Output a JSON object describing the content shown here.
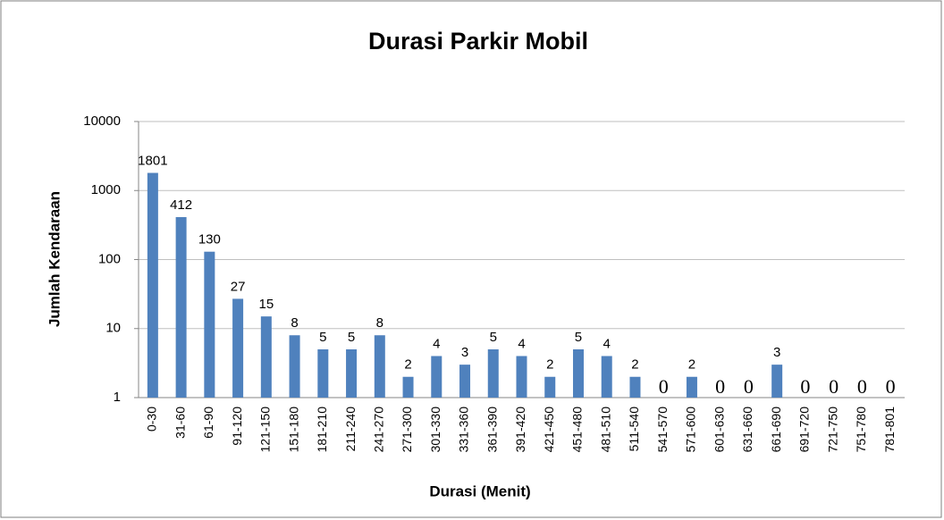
{
  "chart_data": {
    "type": "bar",
    "title": "Durasi Parkir Mobil",
    "x_label": "Durasi (Menit)",
    "y_label": "Jumlah Kendaraan",
    "categories": [
      "0-30",
      "31-60",
      "61-90",
      "91-120",
      "121-150",
      "151-180",
      "181-210",
      "211-240",
      "241-270",
      "271-300",
      "301-330",
      "331-360",
      "361-390",
      "391-420",
      "421-450",
      "451-480",
      "481-510",
      "511-540",
      "541-570",
      "571-600",
      "601-630",
      "631-660",
      "661-690",
      "691-720",
      "721-750",
      "751-780",
      "781-801"
    ],
    "values": [
      1801,
      412,
      130,
      27,
      15,
      8,
      5,
      5,
      8,
      2,
      4,
      3,
      5,
      4,
      2,
      5,
      4,
      2,
      0,
      2,
      0,
      0,
      3,
      0,
      0,
      0,
      0
    ],
    "color": "#4f81bd",
    "ylim": [
      1,
      10000
    ],
    "yticks": [
      1,
      10,
      100,
      1000,
      10000
    ],
    "log_scale": true,
    "grid": true
  }
}
